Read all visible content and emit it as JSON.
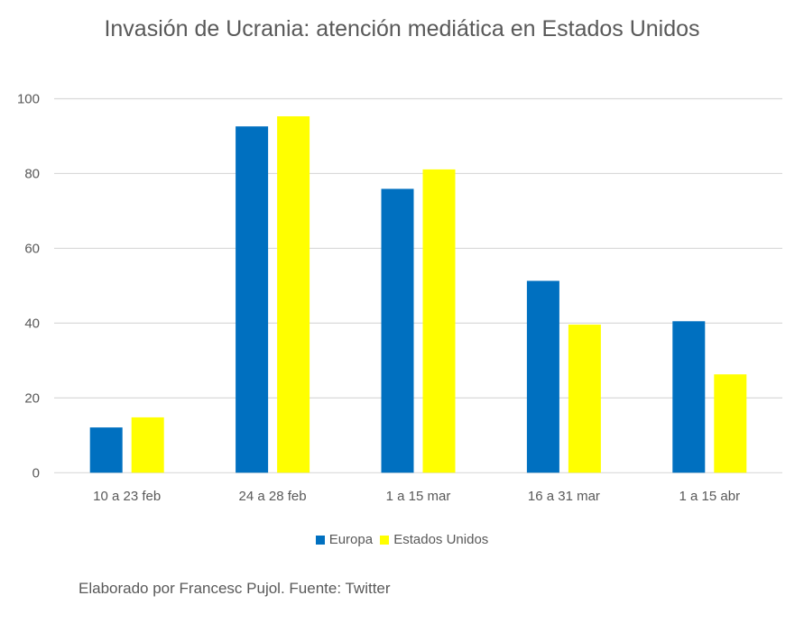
{
  "chart_data": {
    "type": "bar",
    "title": "Invasión de Ucrania: atención mediática en Estados Unidos",
    "categories": [
      "10 a 23 feb",
      "24 a 28 feb",
      "1 a 15 mar",
      "16 a 31 mar",
      "1 a 15 abr"
    ],
    "series": [
      {
        "name": "Europa",
        "color": "#0070C0",
        "values": [
          12.1,
          92.6,
          75.9,
          51.3,
          40.5
        ]
      },
      {
        "name": "Estados Unidos",
        "color": "#FFFF00",
        "values": [
          14.8,
          95.3,
          81.1,
          39.6,
          26.3
        ]
      }
    ],
    "ylim": [
      0,
      100
    ],
    "yticks": [
      0,
      20,
      40,
      60,
      80,
      100
    ],
    "grid": true,
    "legend": "bottom",
    "xlabel": "",
    "ylabel": "",
    "footer": "Elaborado por Francesc Pujol. Fuente: Twitter"
  }
}
